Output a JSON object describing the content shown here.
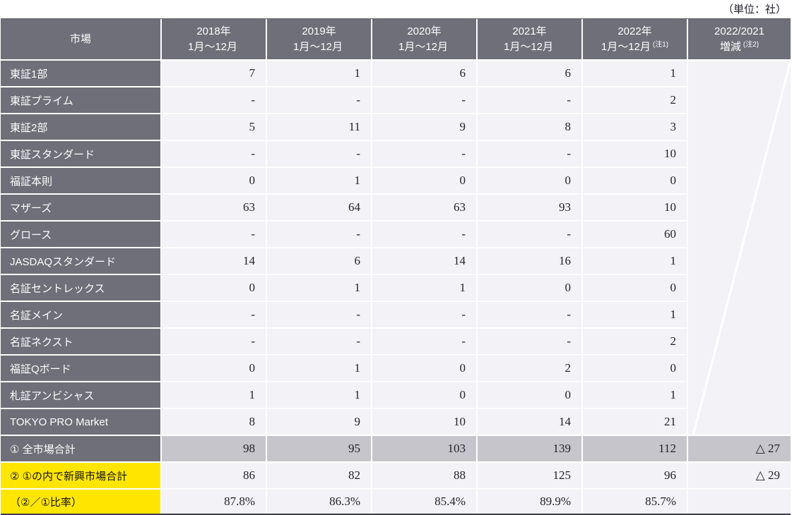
{
  "colors": {
    "header_bg": "#6f6f79",
    "data_cell_bg": "#f2f2f7",
    "total_row_bg": "#c6c5cb",
    "highlight_yellow": "#ffe600",
    "header_text": "#fdfdfd",
    "data_text": "#23232c",
    "bottom_border": "#3e3e47",
    "diagonal_line": "#ffffff"
  },
  "chart_data": {
    "type": "table",
    "unit_label": "（単位：社）",
    "header": {
      "market": "市場",
      "years": [
        {
          "line1": "2018年",
          "line2": "1月～12月",
          "note": ""
        },
        {
          "line1": "2019年",
          "line2": "1月～12月",
          "note": ""
        },
        {
          "line1": "2020年",
          "line2": "1月～12月",
          "note": ""
        },
        {
          "line1": "2021年",
          "line2": "1月～12月",
          "note": ""
        },
        {
          "line1": "2022年",
          "line2": "1月～12月",
          "note": "(注1)"
        }
      ],
      "change": {
        "line1": "2022/2021",
        "line2": "増減",
        "note": "(注2)"
      }
    },
    "rows": [
      {
        "label": "東証1部",
        "values": [
          "7",
          "1",
          "6",
          "6",
          "1"
        ]
      },
      {
        "label": "東証プライム",
        "values": [
          "-",
          "-",
          "-",
          "-",
          "2"
        ]
      },
      {
        "label": "東証2部",
        "values": [
          "5",
          "11",
          "9",
          "8",
          "3"
        ]
      },
      {
        "label": "東証スタンダード",
        "values": [
          "-",
          "-",
          "-",
          "-",
          "10"
        ]
      },
      {
        "label": "福証本則",
        "values": [
          "0",
          "1",
          "0",
          "0",
          "0"
        ]
      },
      {
        "label": "マザーズ",
        "values": [
          "63",
          "64",
          "63",
          "93",
          "10"
        ]
      },
      {
        "label": "グロース",
        "values": [
          "-",
          "-",
          "-",
          "-",
          "60"
        ]
      },
      {
        "label": "JASDAQスタンダード",
        "values": [
          "14",
          "6",
          "14",
          "16",
          "1"
        ]
      },
      {
        "label": "名証セントレックス",
        "values": [
          "0",
          "1",
          "1",
          "0",
          "0"
        ]
      },
      {
        "label": "名証メイン",
        "values": [
          "-",
          "-",
          "-",
          "-",
          "1"
        ]
      },
      {
        "label": "名証ネクスト",
        "values": [
          "-",
          "-",
          "-",
          "-",
          "2"
        ]
      },
      {
        "label": "福証Qボード",
        "values": [
          "0",
          "1",
          "0",
          "2",
          "0"
        ]
      },
      {
        "label": "札証アンビシャス",
        "values": [
          "1",
          "1",
          "0",
          "0",
          "1"
        ]
      },
      {
        "label": "TOKYO PRO Market",
        "values": [
          "8",
          "9",
          "10",
          "14",
          "21"
        ]
      }
    ],
    "summary": [
      {
        "label": "① 全市場合計",
        "values": [
          "98",
          "95",
          "103",
          "139",
          "112"
        ],
        "delta": "△ 27",
        "style": "total"
      },
      {
        "label": "② ①の内で新興市場合計",
        "values": [
          "86",
          "82",
          "88",
          "125",
          "96"
        ],
        "delta": "△ 29",
        "style": "emerging"
      },
      {
        "label": "（②／①比率）",
        "values": [
          "87.8%",
          "86.3%",
          "85.4%",
          "89.9%",
          "85.7%"
        ],
        "delta": "",
        "style": "ratio"
      }
    ]
  }
}
